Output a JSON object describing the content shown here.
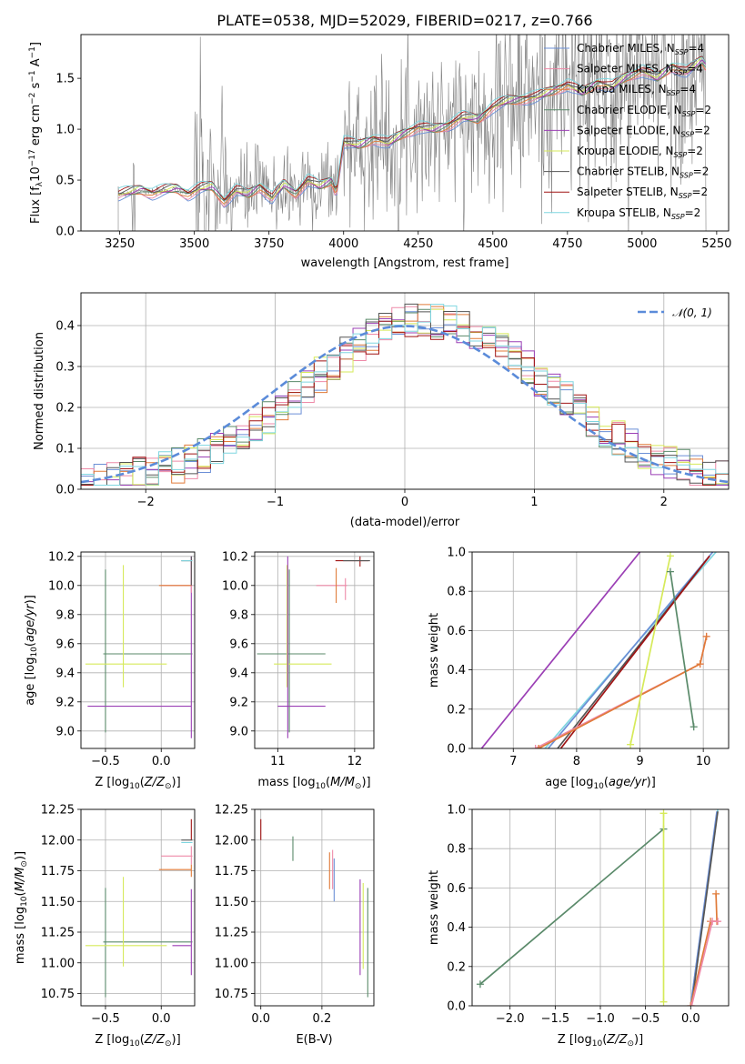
{
  "title": "PLATE=0538, MJD=52029, FIBERID=0217, z=0.766",
  "colors": {
    "Chabrier MILES": "#6b8fd6",
    "Salpeter MILES": "#ee8aa8",
    "Kroupa MILES": "#e07b39",
    "Chabrier ELODIE": "#5a8a6a",
    "Salpeter ELODIE": "#9b3fb5",
    "Kroupa ELODIE": "#d6ea5a",
    "Chabrier STELIB": "#555555",
    "Salpeter STELIB": "#a01414",
    "Kroupa STELIB": "#7fd6e0",
    "normal": "#5b8bd9",
    "spectrum": "#808080"
  },
  "chart_data": [
    {
      "id": "spectrum",
      "type": "line",
      "xlabel": "wavelength [Angstrom, rest frame]",
      "ylabel": "Flux [f_λ10^-17 erg cm^-2 s^-1 A^-1]",
      "xlim": [
        3120,
        5290
      ],
      "ylim": [
        0,
        1.93
      ],
      "xticks": [
        "3250",
        "3500",
        "3750",
        "4000",
        "4250",
        "4500",
        "4750",
        "5000",
        "5250"
      ],
      "yticks": [
        "0.0",
        "0.5",
        "1.0",
        "1.5"
      ],
      "legend_position": "upper right",
      "legend": [
        {
          "label": "Chabrier MILES, N",
          "sub": "SSP",
          "tail": "=4",
          "model": "Chabrier MILES"
        },
        {
          "label": "Salpeter MILES, N",
          "sub": "SSP",
          "tail": "=4",
          "model": "Salpeter MILES"
        },
        {
          "label": "Kroupa MILES, N",
          "sub": "SSP",
          "tail": "=4",
          "model": "Kroupa MILES"
        },
        {
          "label": "Chabrier ELODIE, N",
          "sub": "SSP",
          "tail": "=2",
          "model": "Chabrier ELODIE"
        },
        {
          "label": "Salpeter ELODIE, N",
          "sub": "SSP",
          "tail": "=2",
          "model": "Salpeter ELODIE"
        },
        {
          "label": "Kroupa ELODIE, N",
          "sub": "SSP",
          "tail": "=2",
          "model": "Kroupa ELODIE"
        },
        {
          "label": "Chabrier STELIB, N",
          "sub": "SSP",
          "tail": "=2",
          "model": "Chabrier STELIB"
        },
        {
          "label": "Salpeter STELIB, N",
          "sub": "SSP",
          "tail": "=2",
          "model": "Salpeter STELIB"
        },
        {
          "label": "Kroupa STELIB, N",
          "sub": "SSP",
          "tail": "=2",
          "model": "Kroupa STELIB"
        }
      ],
      "model_continuum": {
        "x": [
          3245,
          3280,
          3320,
          3360,
          3400,
          3440,
          3480,
          3520,
          3560,
          3600,
          3640,
          3680,
          3720,
          3760,
          3800,
          3840,
          3880,
          3920,
          3960,
          3975,
          4000,
          4050,
          4100,
          4150,
          4200,
          4250,
          4300,
          4350,
          4400,
          4450,
          4500,
          4550,
          4600,
          4650,
          4700,
          4750,
          4800,
          4850,
          4900,
          4950,
          5000,
          5050,
          5100,
          5150,
          5200,
          5215
        ],
        "y": [
          0.36,
          0.38,
          0.41,
          0.37,
          0.4,
          0.42,
          0.36,
          0.42,
          0.44,
          0.29,
          0.4,
          0.36,
          0.44,
          0.32,
          0.46,
          0.37,
          0.5,
          0.44,
          0.5,
          0.38,
          0.88,
          0.84,
          0.91,
          0.86,
          0.96,
          1.02,
          1.0,
          1.04,
          1.12,
          1.1,
          1.22,
          1.28,
          1.3,
          1.32,
          1.38,
          1.44,
          1.36,
          1.46,
          1.42,
          1.52,
          1.58,
          1.5,
          1.62,
          1.56,
          1.68,
          1.62
        ]
      },
      "observed_start": 3245,
      "observed_end": 5215
    },
    {
      "id": "residuals",
      "type": "histogram",
      "xlabel": "(data-model)/error",
      "ylabel": "Normed distribution",
      "xlim": [
        -2.5,
        2.5
      ],
      "ylim": [
        0,
        0.48
      ],
      "xticks": [
        "−2",
        "−1",
        "0",
        "1",
        "2"
      ],
      "yticks": [
        "0.0",
        "0.1",
        "0.2",
        "0.3",
        "0.4"
      ],
      "legend": "𝒩(0, 1)",
      "legend_position": "upper right",
      "grid": true,
      "bins": [
        -2.5,
        -2.4,
        -2.3,
        -2.2,
        -2.1,
        -2.0,
        -1.9,
        -1.8,
        -1.7,
        -1.6,
        -1.5,
        -1.4,
        -1.3,
        -1.2,
        -1.1,
        -1.0,
        -0.9,
        -0.8,
        -0.7,
        -0.6,
        -0.5,
        -0.4,
        -0.3,
        -0.2,
        -0.1,
        0.0,
        0.1,
        0.2,
        0.3,
        0.4,
        0.5,
        0.6,
        0.7,
        0.8,
        0.9,
        1.0,
        1.1,
        1.2,
        1.3,
        1.4,
        1.5,
        1.6,
        1.7,
        1.8,
        1.9,
        2.0,
        2.1,
        2.2,
        2.3,
        2.4,
        2.5
      ]
    },
    {
      "id": "age-vs-Z",
      "type": "errorbar",
      "xlabel": "Z [log10(Z/Z⊙)]",
      "ylabel": "age  [log10(age/yr)]",
      "xlim": [
        -0.72,
        0.3
      ],
      "ylim": [
        8.88,
        10.23
      ],
      "xticks": [
        "−0.5",
        "0.0"
      ],
      "yticks": [
        "9.0",
        "9.2",
        "9.4",
        "9.6",
        "9.8",
        "10.0",
        "10.2"
      ],
      "grid": true
    },
    {
      "id": "age-vs-mass",
      "type": "errorbar",
      "xlabel": "mass [log10(M/M⊙)]",
      "ylabel": "",
      "xlim": [
        10.7,
        12.25
      ],
      "ylim": [
        8.88,
        10.23
      ],
      "xticks": [
        "11",
        "12"
      ],
      "yticks": [
        "9.0",
        "9.2",
        "9.4",
        "9.6",
        "9.8",
        "10.0",
        "10.2"
      ],
      "grid": true
    },
    {
      "id": "weight-vs-age",
      "type": "line",
      "xlabel": "age  [log10(age/yr)]",
      "ylabel": "mass weight",
      "xlim": [
        6.35,
        10.4
      ],
      "ylim": [
        0,
        1
      ],
      "xticks": [
        "7",
        "8",
        "9",
        "10"
      ],
      "yticks": [
        "0.0",
        "0.2",
        "0.4",
        "0.6",
        "0.8",
        "1.0"
      ],
      "grid": true
    },
    {
      "id": "mass-vs-Z",
      "type": "errorbar",
      "xlabel": "Z [log10(Z/Z⊙)]",
      "ylabel": "mass [log10(M/M⊙)]",
      "xlim": [
        -0.72,
        0.3
      ],
      "ylim": [
        10.65,
        12.25
      ],
      "xticks": [
        "−0.5",
        "0.0"
      ],
      "yticks": [
        "10.75",
        "11.00",
        "11.25",
        "11.50",
        "11.75",
        "12.00",
        "12.25"
      ],
      "grid": true
    },
    {
      "id": "mass-vs-ebv",
      "type": "errorbar",
      "xlabel": "E(B-V)",
      "ylabel": "",
      "xlim": [
        -0.02,
        0.37
      ],
      "ylim": [
        10.65,
        12.25
      ],
      "xticks": [
        "0.0",
        "0.2"
      ],
      "yticks": [
        "10.75",
        "11.00",
        "11.25",
        "11.50",
        "11.75",
        "12.00",
        "12.25"
      ],
      "grid": true
    },
    {
      "id": "weight-vs-Z",
      "type": "line",
      "xlabel": "Z [log10(Z/Z⊙)]",
      "ylabel": "mass weight",
      "xlim": [
        -2.42,
        0.42
      ],
      "ylim": [
        0,
        1
      ],
      "xticks": [
        "−2.0",
        "−1.5",
        "−1.0",
        "−0.5",
        "0.0"
      ],
      "yticks": [
        "0.0",
        "0.2",
        "0.4",
        "0.6",
        "0.8",
        "1.0"
      ],
      "grid": true
    }
  ]
}
